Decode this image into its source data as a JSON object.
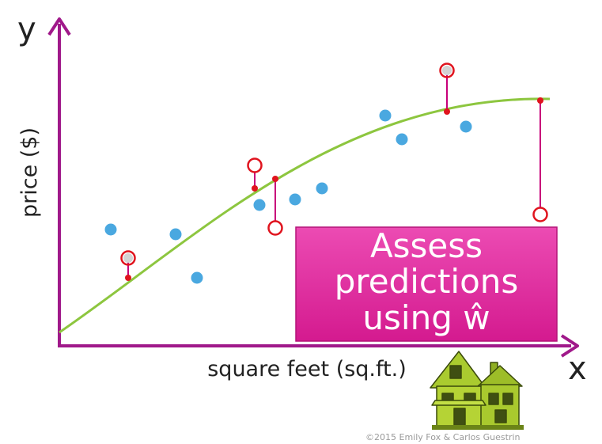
{
  "axes": {
    "y_letter": "y",
    "x_letter": "x",
    "y_label": "price ($)",
    "x_label": "square feet (sq.ft.)"
  },
  "callout": {
    "line1": "Assess",
    "line2": "predictions",
    "line3": "using ŵ",
    "color": "#e0269b"
  },
  "colors": {
    "axis": "#a0198a",
    "fit_curve": "#8dc63f",
    "observed_point": "#4aa8e0",
    "residual": "#c8007a",
    "marker": "#e0141e",
    "house_body": "#b5d335"
  },
  "house_icon": "house-icon",
  "copyright": "©2015 Emily Fox & Carlos Guestrin"
}
